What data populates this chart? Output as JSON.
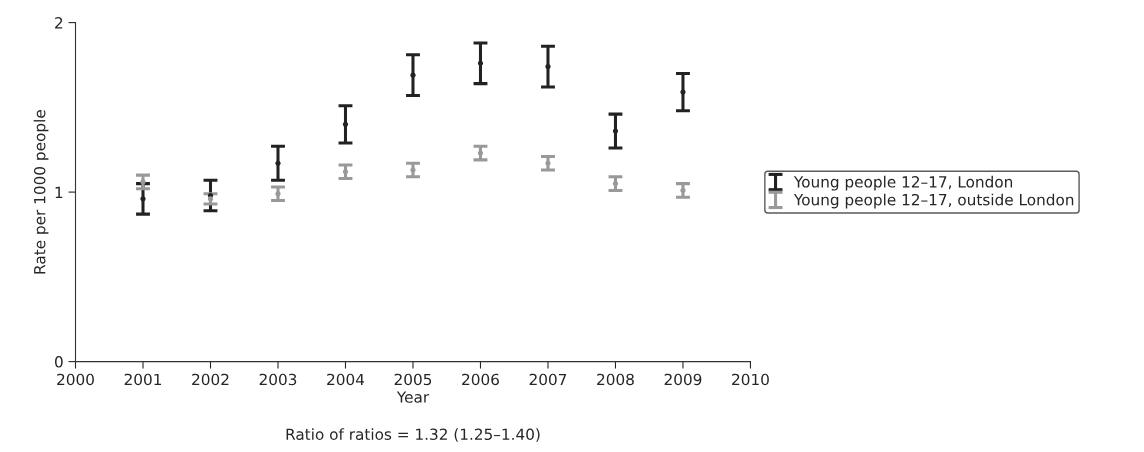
{
  "chart_data": {
    "type": "scatter",
    "xlabel": "Year",
    "ylabel": "Rate per 1000 people",
    "x": [
      2001,
      2002,
      2003,
      2004,
      2005,
      2006,
      2007,
      2008,
      2009
    ],
    "series": [
      {
        "name": "Young people 12–17, London",
        "color": "#222222",
        "values": [
          0.96,
          0.98,
          1.17,
          1.4,
          1.69,
          1.76,
          1.74,
          1.36,
          1.59
        ],
        "errors": [
          0.09,
          0.09,
          0.1,
          0.11,
          0.12,
          0.12,
          0.12,
          0.1,
          0.11
        ]
      },
      {
        "name": "Young people 12–17, outside London",
        "color": "#999999",
        "values": [
          1.06,
          0.96,
          0.99,
          1.12,
          1.13,
          1.23,
          1.17,
          1.05,
          1.01
        ],
        "errors": [
          0.04,
          0.03,
          0.04,
          0.04,
          0.04,
          0.04,
          0.04,
          0.04,
          0.04
        ]
      }
    ],
    "xlim": [
      2000,
      2010
    ],
    "xticks": [
      2000,
      2001,
      2002,
      2003,
      2004,
      2005,
      2006,
      2007,
      2008,
      2009,
      2010
    ],
    "ylim": [
      0,
      2
    ],
    "yticks": [
      0,
      1,
      2
    ],
    "marker": "circle",
    "grid": false,
    "legend": "right",
    "annotations": [
      "Ratio of ratios = 1.32 (1.25–1.40)"
    ]
  }
}
